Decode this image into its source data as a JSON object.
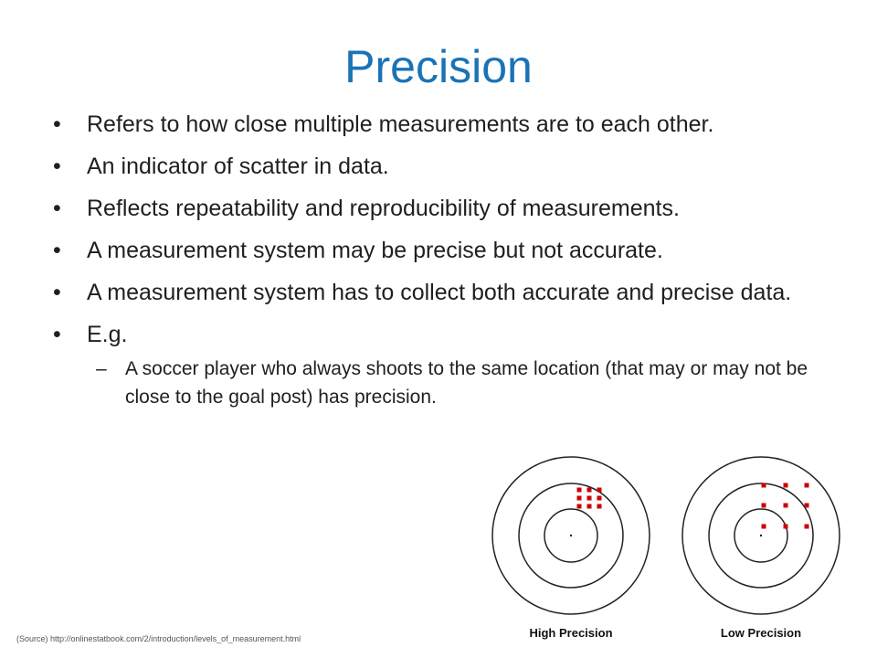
{
  "slide": {
    "title": "Precision",
    "bullets": [
      "Refers to how close multiple measurements are to each other.",
      "An indicator of scatter in data.",
      "Reflects repeatability and reproducibility of measurements.",
      "A measurement system may be precise but not accurate.",
      "A measurement system has to collect both accurate and precise data.",
      "E.g."
    ],
    "sub_bullet": "A soccer player who always shoots to the same location (that may or may not be close to the goal post) has precision.",
    "bullet_glyph": "•",
    "sub_glyph": "–",
    "source": "(Source) http://onlinestatbook.com/2/introduction/levels_of_measurement.html"
  },
  "figure": {
    "labels": [
      "High Precision",
      "Low Precision"
    ],
    "shot_color": "#cc0000"
  }
}
